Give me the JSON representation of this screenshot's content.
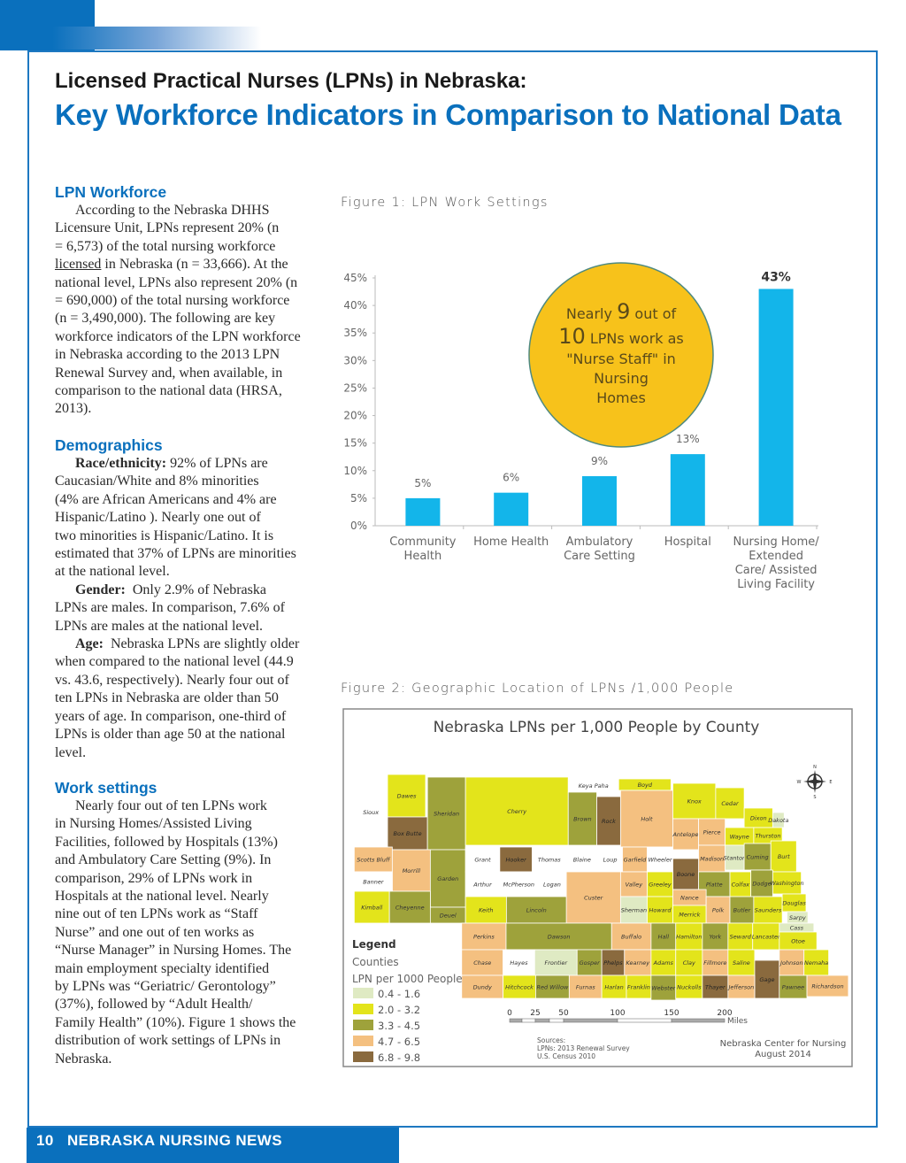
{
  "header": {
    "title": "Licensed Practical Nurses (LPNs) in Nebraska:",
    "subtitle": "Key Workforce Indicators in Comparison to National Data"
  },
  "sections": {
    "workforce": {
      "heading": "LPN Workforce",
      "lines": [
        "According to the Nebraska DHHS",
        "Licensure Unit, LPNs represent 20% (n",
        "= 6,573) of the total nursing workforce",
        " in Nebraska (n = 33,666).  At the",
        "national level, LPNs also represent 20% (n",
        "= 690,000) of the total nursing workforce",
        "(n = 3,490,000).  The following are key",
        "workforce indicators of the LPN workforce",
        "in Nebraska according to the 2013 LPN",
        "Renewal Survey and, when available, in",
        "comparison to the national data (HRSA,",
        "2013)."
      ],
      "underlined_word": "licensed"
    },
    "demographics": {
      "heading": "Demographics",
      "race": {
        "label": "Race/ethnicity:",
        "lines": [
          " 92% of LPNs are",
          "Caucasian/White and 8% minorities",
          "(4% are African Americans and 4% are",
          "Hispanic/Latino ).  Nearly one out of",
          "two minorities is Hispanic/Latino.   It is",
          "estimated that 37% of LPNs are minorities",
          "at the national level."
        ]
      },
      "gender": {
        "label": "Gender:",
        "lines": [
          "  Only 2.9% of Nebraska",
          "LPNs are males.  In comparison, 7.6% of",
          "LPNs are males at the national level."
        ]
      },
      "age": {
        "label": "Age:",
        "lines": [
          "  Nebraska LPNs are slightly older",
          "when compared to the national level (44.9",
          "vs. 43.6, respectively).  Nearly four out of",
          "ten LPNs in Nebraska are older than 50",
          "years of age.  In comparison, one-third of",
          "LPNs is older than age 50 at the national",
          "level."
        ]
      }
    },
    "work_settings": {
      "heading": "Work settings",
      "lines": [
        "Nearly four out of ten LPNs work",
        "in Nursing Homes/Assisted Living",
        "Facilities, followed by Hospitals (13%)",
        "and Ambulatory Care Setting (9%).  In",
        "comparison, 29% of LPNs work in",
        "Hospitals at the national level.  Nearly",
        "nine out of ten LPNs work as “Staff",
        "Nurse” and one out of ten works as",
        "“Nurse Manager” in Nursing Homes. The",
        "main employment specialty identified",
        "by LPNs was “Geriatric/ Gerontology”",
        "(37%), followed by “Adult Health/",
        "Family Health” (10%). Figure 1 shows the",
        "distribution of work settings of LPNs in",
        "Nebraska."
      ]
    }
  },
  "figure1": {
    "caption": "Figure 1:  LPN Work Settings",
    "callout": {
      "lines": [
        [
          "Nearly ",
          "9",
          " out of"
        ],
        [
          "",
          "10",
          " LPNs work as"
        ],
        [
          "",
          "",
          "\"Nurse Staff\" in"
        ],
        [
          "",
          "",
          "Nursing"
        ],
        [
          "",
          "",
          "Homes"
        ]
      ],
      "fill": "#f7c21b"
    }
  },
  "chart_data": {
    "type": "bar",
    "categories": [
      [
        "Community",
        "Health"
      ],
      [
        "Home Health"
      ],
      [
        "Ambulatory",
        "Care Setting"
      ],
      [
        "Hospital"
      ],
      [
        "Nursing Home/",
        "Extended",
        "Care/ Assisted",
        "Living Facility"
      ]
    ],
    "values": [
      5,
      6,
      9,
      13,
      43
    ],
    "data_labels": [
      "5%",
      "6%",
      "9%",
      "13%",
      "43%"
    ],
    "yticks": [
      "0%",
      "5%",
      "10%",
      "15%",
      "20%",
      "25%",
      "30%",
      "35%",
      "40%",
      "45%"
    ],
    "ylim": [
      0,
      45
    ],
    "bar_color": "#13b5ea",
    "grid": false
  },
  "figure2": {
    "caption": "Figure 2:  Geographic Location of LPNs /1,000 People",
    "map_title": "Nebraska LPNs per 1,000 People by County",
    "legend": {
      "title": "Legend",
      "layer": "Counties",
      "field": "LPN per 1000 People",
      "classes": [
        {
          "label": "0.4 - 1.6",
          "color": "#dfeac3"
        },
        {
          "label": "2.0 - 3.2",
          "color": "#e3e41b"
        },
        {
          "label": "3.3 - 4.5",
          "color": "#9ea23b"
        },
        {
          "label": "4.7 - 6.5",
          "color": "#f4c080"
        },
        {
          "label": "6.8 - 9.8",
          "color": "#8a6a3e"
        }
      ],
      "no_data_color": "#ffffff"
    },
    "scale": {
      "ticks": [
        "0",
        "25",
        "50",
        "100",
        "150",
        "200"
      ],
      "unit": "Miles"
    },
    "sources": [
      "Sources:",
      "LPNs: 2013 Renewal Survey",
      "U.S. Census 2010"
    ],
    "credit": [
      "Nebraska Center for Nursing",
      "August 2014"
    ],
    "compass": {
      "n": "N",
      "s": "S",
      "e": "E",
      "w": "W"
    },
    "counties": [
      {
        "name": "Sioux",
        "c": -1
      },
      {
        "name": "Dawes",
        "c": 1
      },
      {
        "name": "Box Butte",
        "c": 4
      },
      {
        "name": "Sheridan",
        "c": 2
      },
      {
        "name": "Cherry",
        "c": 1
      },
      {
        "name": "Keya Paha",
        "c": -1
      },
      {
        "name": "Brown",
        "c": 2
      },
      {
        "name": "Rock",
        "c": 4
      },
      {
        "name": "Boyd",
        "c": 1
      },
      {
        "name": "Holt",
        "c": 3
      },
      {
        "name": "Knox",
        "c": 1
      },
      {
        "name": "Cedar",
        "c": 1
      },
      {
        "name": "Dixon",
        "c": 1
      },
      {
        "name": "Dakota",
        "c": 0
      },
      {
        "name": "Antelope",
        "c": 3
      },
      {
        "name": "Pierce",
        "c": 3
      },
      {
        "name": "Wayne",
        "c": 1
      },
      {
        "name": "Thurston",
        "c": 1
      },
      {
        "name": "Scotts Bluff",
        "c": 3
      },
      {
        "name": "Morrill",
        "c": 3
      },
      {
        "name": "Garden",
        "c": 2
      },
      {
        "name": "Grant",
        "c": -1
      },
      {
        "name": "Hooker",
        "c": 4
      },
      {
        "name": "Thomas",
        "c": -1
      },
      {
        "name": "Blaine",
        "c": -1
      },
      {
        "name": "Loup",
        "c": -1
      },
      {
        "name": "Garfield",
        "c": 3
      },
      {
        "name": "Wheeler",
        "c": -1
      },
      {
        "name": "Madison",
        "c": 3
      },
      {
        "name": "Boone",
        "c": 4
      },
      {
        "name": "Stanton",
        "c": 0
      },
      {
        "name": "Cuming",
        "c": 2
      },
      {
        "name": "Burt",
        "c": 1
      },
      {
        "name": "Banner",
        "c": -1
      },
      {
        "name": "Arthur",
        "c": -1
      },
      {
        "name": "McPherson",
        "c": -1
      },
      {
        "name": "Logan",
        "c": -1
      },
      {
        "name": "Custer",
        "c": 3
      },
      {
        "name": "Valley",
        "c": 3
      },
      {
        "name": "Greeley",
        "c": 1
      },
      {
        "name": "Platte",
        "c": 2
      },
      {
        "name": "Colfax",
        "c": 1
      },
      {
        "name": "Dodge",
        "c": 2
      },
      {
        "name": "Washington",
        "c": 1
      },
      {
        "name": "Kimball",
        "c": 1
      },
      {
        "name": "Cheyenne",
        "c": 2
      },
      {
        "name": "Deuel",
        "c": 2
      },
      {
        "name": "Keith",
        "c": 1
      },
      {
        "name": "Lincoln",
        "c": 2
      },
      {
        "name": "Sherman",
        "c": 0
      },
      {
        "name": "Howard",
        "c": 1
      },
      {
        "name": "Nance",
        "c": 3
      },
      {
        "name": "Merrick",
        "c": 1
      },
      {
        "name": "Polk",
        "c": 3
      },
      {
        "name": "Butler",
        "c": 2
      },
      {
        "name": "Saunders",
        "c": 1
      },
      {
        "name": "Douglas",
        "c": 1
      },
      {
        "name": "Sarpy",
        "c": 0
      },
      {
        "name": "Perkins",
        "c": 3
      },
      {
        "name": "Dawson",
        "c": 2
      },
      {
        "name": "Buffalo",
        "c": 3
      },
      {
        "name": "Hall",
        "c": 2
      },
      {
        "name": "Hamilton",
        "c": 1
      },
      {
        "name": "York",
        "c": 2
      },
      {
        "name": "Seward",
        "c": 1
      },
      {
        "name": "Lancaster",
        "c": 1
      },
      {
        "name": "Cass",
        "c": 0
      },
      {
        "name": "Otoe",
        "c": 1
      },
      {
        "name": "Chase",
        "c": 3
      },
      {
        "name": "Hayes",
        "c": -1
      },
      {
        "name": "Frontier",
        "c": 0
      },
      {
        "name": "Gosper",
        "c": 2
      },
      {
        "name": "Phelps",
        "c": 4
      },
      {
        "name": "Kearney",
        "c": 3
      },
      {
        "name": "Adams",
        "c": 1
      },
      {
        "name": "Clay",
        "c": 1
      },
      {
        "name": "Fillmore",
        "c": 3
      },
      {
        "name": "Saline",
        "c": 1
      },
      {
        "name": "Gage",
        "c": 4
      },
      {
        "name": "Johnson",
        "c": 3
      },
      {
        "name": "Nemaha",
        "c": 1
      },
      {
        "name": "Dundy",
        "c": 3
      },
      {
        "name": "Hitchcock",
        "c": 1
      },
      {
        "name": "Red Willow",
        "c": 2
      },
      {
        "name": "Furnas",
        "c": 3
      },
      {
        "name": "Harlan",
        "c": 1
      },
      {
        "name": "Franklin",
        "c": 1
      },
      {
        "name": "Webster",
        "c": 2
      },
      {
        "name": "Nuckolls",
        "c": 1
      },
      {
        "name": "Thayer",
        "c": 4
      },
      {
        "name": "Jefferson",
        "c": 3
      },
      {
        "name": "Pawnee",
        "c": 2
      },
      {
        "name": "Richardson",
        "c": 3
      }
    ]
  },
  "footer": {
    "page": "10",
    "publication": "NEBRASKA NURSING NEWS"
  }
}
